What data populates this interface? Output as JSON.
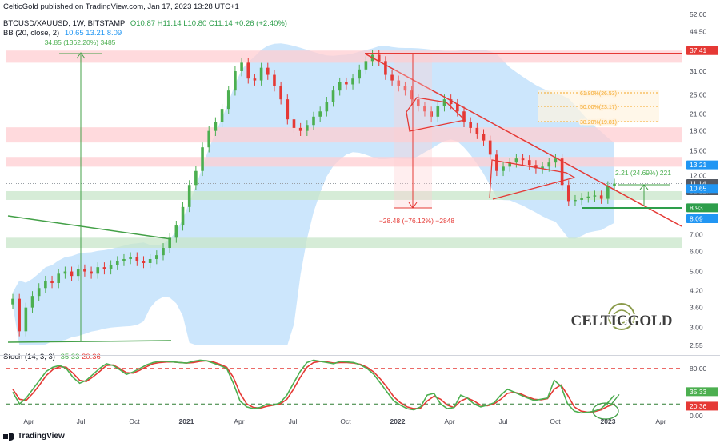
{
  "header": {
    "published": "CelticGold published on TradingView.com, Jan 17, 2023 13:28 UTC+1",
    "symbol_line": "BTCUSD/XAUUSD, 1W, BITSTAMP",
    "ohlc": "O10.87 H11.14 L10.80 C11.14 +0.26 (+2.40%)",
    "bb_label": "BB (20, close, 2)",
    "bb_values": [
      "10.65",
      "13.21",
      "8.09"
    ],
    "stoch_label": "Stoch (14, 3, 3)",
    "stoch_values": [
      "35.33",
      "20.36"
    ]
  },
  "footer": {
    "brand": "TradingView"
  },
  "logo": {
    "text": "CELTICGOLD"
  },
  "colors": {
    "up": "#4caf50",
    "down": "#e53935",
    "bb_fill": "#bbdefb",
    "blue_tag": "#2196f3",
    "green_zone": "#c8e6c9",
    "red_zone": "#ffcdd2",
    "fib": "#f5a623",
    "dark_tag": "#555a64"
  },
  "chart_data": [
    {
      "type": "line",
      "scale": "log",
      "ylim": [
        2.55,
        52.0
      ],
      "y_ticks": [
        "52.00",
        "44.50",
        "37.41",
        "31.00",
        "25.00",
        "21.00",
        "18.00",
        "15.00",
        "13.21",
        "12.00",
        "11.14",
        "10.65",
        "8.93",
        "8.09",
        "7.00",
        "6.00",
        "5.00",
        "4.20",
        "3.60",
        "3.00",
        "2.55"
      ],
      "x_ticks": [
        "Apr",
        "Jul",
        "Oct",
        "2021",
        "Apr",
        "Jul",
        "Oct",
        "2022",
        "Apr",
        "Jul",
        "Oct",
        "2023",
        "Apr"
      ],
      "price_tags": [
        {
          "label": "37.41",
          "value": 37.41,
          "color": "#e53935"
        },
        {
          "label": "13.21",
          "value": 13.21,
          "color": "#2196f3"
        },
        {
          "label": "11.14",
          "sub": "5d 12h",
          "value": 11.14,
          "color": "#555a64"
        },
        {
          "label": "10.65",
          "value": 10.65,
          "color": "#2196f3"
        },
        {
          "label": "8.93",
          "value": 8.93,
          "color": "#2e9e4b"
        },
        {
          "label": "8.09",
          "value": 8.09,
          "color": "#2196f3"
        }
      ],
      "annotations": [
        {
          "text": "34.85 (1362.20%) 3485",
          "color": "#4caf50"
        },
        {
          "text": "−28.48 (−76.12%) −2848",
          "color": "#e53935"
        },
        {
          "text": "2.21 (24.69%) 221",
          "color": "#4caf50"
        },
        {
          "text": "61.80%(26.53)",
          "color": "#f5a623"
        },
        {
          "text": "50.00%(23.17)",
          "color": "#f5a623"
        },
        {
          "text": "38.20%(19.81)",
          "color": "#f5a623"
        }
      ],
      "series": [
        {
          "values": [
            3.9,
            2.9,
            3.6,
            4.0,
            4.3,
            4.6,
            4.5,
            4.9,
            5.0,
            4.8,
            5.1,
            5.0,
            4.9,
            5.2,
            5.1,
            5.3,
            5.5,
            5.6,
            5.7,
            5.5,
            5.4,
            5.6,
            5.8,
            6.2,
            6.8,
            7.6,
            9.0,
            11.0,
            12.5,
            15.5,
            18.0,
            19.5,
            22.0,
            26.0,
            31.0,
            33.5,
            29.0,
            28.5,
            32.0,
            30.0,
            27.0,
            24.0,
            20.0,
            18.5,
            18.0,
            19.0,
            20.5,
            21.5,
            23.5,
            26.0,
            28.0,
            27.5,
            29.0,
            31.5,
            34.0,
            36.0,
            34.0,
            30.0,
            28.5,
            27.0,
            26.0,
            24.0,
            22.5,
            21.5,
            20.5,
            22.5,
            24.0,
            23.0,
            21.5,
            19.5,
            18.5,
            17.5,
            16.5,
            14.5,
            12.5,
            13.0,
            13.5,
            14.0,
            13.8,
            13.2,
            12.8,
            13.0,
            13.5,
            14.0,
            11.0,
            9.5,
            9.6,
            9.8,
            9.9,
            10.0,
            9.7,
            10.9,
            11.14
          ]
        }
      ]
    },
    {
      "type": "line",
      "title": "Stoch (14, 3, 3)",
      "ylim": [
        0,
        100
      ],
      "y_ticks": [
        "80.00",
        "35.33",
        "20.36",
        "0.00"
      ],
      "levels": [
        80,
        20
      ],
      "series": [
        {
          "name": "%K",
          "values": [
            40,
            20,
            30,
            45,
            60,
            75,
            82,
            85,
            80,
            65,
            55,
            60,
            70,
            80,
            88,
            85,
            78,
            70,
            74,
            80,
            86,
            90,
            92,
            92,
            91,
            90,
            89,
            92,
            94,
            93,
            89,
            85,
            80,
            55,
            25,
            15,
            12,
            14,
            20,
            18,
            22,
            35,
            55,
            75,
            90,
            94,
            92,
            90,
            88,
            92,
            91,
            90,
            86,
            80,
            70,
            55,
            40,
            25,
            18,
            12,
            10,
            15,
            35,
            38,
            20,
            12,
            14,
            35,
            30,
            20,
            15,
            18,
            22,
            35,
            45,
            40,
            35,
            30,
            26,
            28,
            30,
            60,
            50,
            20,
            8,
            5,
            6,
            8,
            12,
            22,
            35
          ]
        },
        {
          "name": "%D",
          "values": [
            45,
            28,
            26,
            38,
            52,
            68,
            78,
            83,
            82,
            72,
            60,
            58,
            66,
            75,
            85,
            86,
            80,
            73,
            72,
            77,
            83,
            88,
            90,
            91,
            91,
            90,
            89,
            90,
            92,
            93,
            91,
            87,
            82,
            65,
            38,
            20,
            14,
            13,
            16,
            18,
            20,
            28,
            45,
            65,
            82,
            90,
            92,
            91,
            89,
            90,
            90,
            89,
            87,
            82,
            74,
            62,
            48,
            32,
            22,
            15,
            12,
            13,
            25,
            33,
            28,
            18,
            14,
            25,
            30,
            25,
            18,
            17,
            20,
            28,
            38,
            40,
            37,
            32,
            28,
            27,
            29,
            45,
            52,
            35,
            15,
            8,
            6,
            7,
            10,
            16,
            20
          ]
        }
      ]
    }
  ]
}
